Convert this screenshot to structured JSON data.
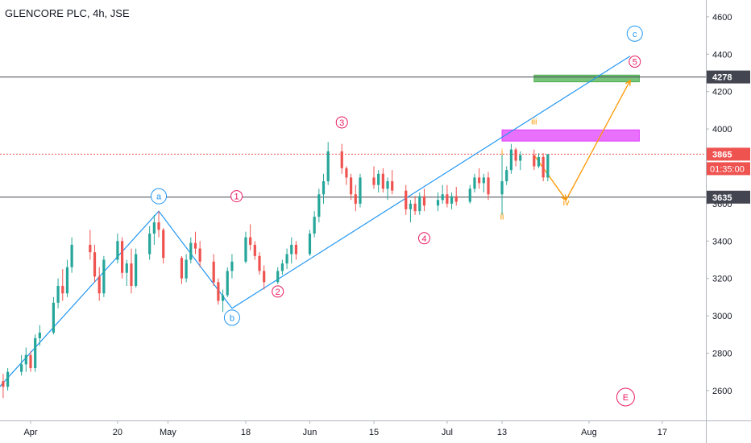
{
  "header": {
    "title": "GLENCORE PLC, 4h, JSE"
  },
  "price_badges": {
    "resistance": "4278",
    "last": "3865",
    "countdown": "01:35:00",
    "support": "3635"
  },
  "colors": {
    "up": "#26a69a",
    "down": "#ef5350",
    "trendline": "#2196f3",
    "projection": "#ff9800",
    "pink_label": "#e91e63",
    "green_zone": "#4caf50",
    "purple_zone": "#e040fb",
    "last_price_badge": "#ef5350",
    "level_badge": "#434651"
  },
  "wave_labels": {
    "primary": [
      "a",
      "b",
      "c"
    ],
    "intermediate": [
      "1",
      "2",
      "3",
      "4",
      "5",
      "E"
    ],
    "minor": [
      "i",
      "ii",
      "iii",
      "iv"
    ]
  },
  "chart_data": {
    "type": "candlestick",
    "title": "GLENCORE PLC, 4h, JSE",
    "x_tick_labels": [
      "Apr",
      "20",
      "May",
      "18",
      "Jun",
      "15",
      "Jul",
      "13",
      "Aug",
      "17"
    ],
    "y_tick_labels": [
      "2600",
      "2800",
      "3000",
      "3200",
      "3400",
      "3600",
      "3800",
      "4000",
      "4200",
      "4400",
      "4600"
    ],
    "ylim": [
      2440,
      4690
    ],
    "grid": false,
    "horizontal_levels": [
      4278,
      3865,
      3635
    ],
    "zones": [
      {
        "name": "green-zone",
        "from": 4252,
        "to": 4288,
        "x_start": "2020-07-20",
        "x_end": "2020-08-12"
      },
      {
        "name": "purple-zone",
        "from": 3935,
        "to": 3995,
        "x_start": "2020-07-13",
        "x_end": "2020-08-12"
      }
    ],
    "trendlines": [
      {
        "name": "abc-path",
        "points": [
          [
            "2020-03-23",
            2560
          ],
          [
            "2020-04-29",
            3560
          ],
          [
            "2020-05-15",
            3040
          ],
          [
            "2020-08-10",
            4390
          ]
        ]
      }
    ],
    "projection": [
      [
        "2020-07-20",
        3860
      ],
      [
        "2020-07-27",
        3620
      ],
      [
        "2020-08-10",
        4260
      ]
    ],
    "wave_label_positions": [
      {
        "text": "a",
        "x": "2020-04-29",
        "y": 3640,
        "style": "circle-blue"
      },
      {
        "text": "b",
        "x": "2020-05-15",
        "y": 2990,
        "style": "circle-blue"
      },
      {
        "text": "c",
        "x": "2020-08-11",
        "y": 4510,
        "style": "circle-blue"
      },
      {
        "text": "1",
        "x": "2020-05-16",
        "y": 3640,
        "style": "circle-pink"
      },
      {
        "text": "2",
        "x": "2020-05-25",
        "y": 3130,
        "style": "circle-pink"
      },
      {
        "text": "3",
        "x": "2020-06-08",
        "y": 4035,
        "style": "circle-pink"
      },
      {
        "text": "4",
        "x": "2020-06-26",
        "y": 3415,
        "style": "circle-pink"
      },
      {
        "text": "5",
        "x": "2020-08-11",
        "y": 4360,
        "style": "circle-pink"
      },
      {
        "text": "E",
        "x": "2020-08-09",
        "y": 2565,
        "style": "circle-pink-large"
      },
      {
        "text": "i",
        "x": "2020-07-13",
        "y": 3860,
        "style": "text-orange"
      },
      {
        "text": "ii",
        "x": "2020-07-13",
        "y": 3515,
        "style": "text-orange"
      },
      {
        "text": "iii",
        "x": "2020-07-20",
        "y": 4025,
        "style": "text-orange"
      },
      {
        "text": "iv",
        "x": "2020-07-27",
        "y": 3590,
        "style": "text-orange"
      }
    ],
    "candles": [
      [
        "2020-03-23",
        2700,
        2760,
        2620,
        2680
      ],
      [
        "2020-03-24",
        2680,
        2850,
        2660,
        2820
      ],
      [
        "2020-03-25",
        2820,
        2840,
        2620,
        2650
      ],
      [
        "2020-03-26",
        2650,
        2690,
        2560,
        2620
      ],
      [
        "2020-03-27",
        2620,
        2720,
        2600,
        2700
      ],
      [
        "2020-03-30",
        2700,
        2790,
        2680,
        2740
      ],
      [
        "2020-03-31",
        2740,
        2830,
        2700,
        2790
      ],
      [
        "2020-04-01",
        2790,
        2810,
        2700,
        2720
      ],
      [
        "2020-04-02",
        2720,
        2900,
        2700,
        2880
      ],
      [
        "2020-04-03",
        2880,
        2950,
        2840,
        2910
      ],
      [
        "2020-04-06",
        2910,
        3100,
        2900,
        3070
      ],
      [
        "2020-04-07",
        3070,
        3200,
        3040,
        3160
      ],
      [
        "2020-04-08",
        3160,
        3250,
        3080,
        3120
      ],
      [
        "2020-04-09",
        3120,
        3300,
        3100,
        3260
      ],
      [
        "2020-04-10",
        3260,
        3420,
        3230,
        3380
      ],
      [
        "2020-04-14",
        3380,
        3460,
        3300,
        3340
      ],
      [
        "2020-04-15",
        3340,
        3380,
        3180,
        3210
      ],
      [
        "2020-04-16",
        3210,
        3260,
        3080,
        3120
      ],
      [
        "2020-04-17",
        3120,
        3320,
        3100,
        3300
      ],
      [
        "2020-04-20",
        3300,
        3440,
        3280,
        3400
      ],
      [
        "2020-04-21",
        3400,
        3420,
        3200,
        3230
      ],
      [
        "2020-04-22",
        3230,
        3300,
        3160,
        3280
      ],
      [
        "2020-04-23",
        3280,
        3360,
        3120,
        3160
      ],
      [
        "2020-04-24",
        3160,
        3360,
        3150,
        3330
      ],
      [
        "2020-04-27",
        3330,
        3480,
        3300,
        3440
      ],
      [
        "2020-04-28",
        3440,
        3540,
        3380,
        3500
      ],
      [
        "2020-04-29",
        3500,
        3560,
        3420,
        3460
      ],
      [
        "2020-04-30",
        3460,
        3470,
        3280,
        3310
      ],
      [
        "2020-05-04",
        3310,
        3320,
        3170,
        3200
      ],
      [
        "2020-05-05",
        3200,
        3330,
        3180,
        3300
      ],
      [
        "2020-05-06",
        3300,
        3420,
        3280,
        3390
      ],
      [
        "2020-05-07",
        3390,
        3450,
        3330,
        3360
      ],
      [
        "2020-05-08",
        3360,
        3400,
        3260,
        3290
      ],
      [
        "2020-05-11",
        3290,
        3330,
        3160,
        3180
      ],
      [
        "2020-05-12",
        3180,
        3200,
        3060,
        3080
      ],
      [
        "2020-05-13",
        3080,
        3140,
        3020,
        3110
      ],
      [
        "2020-05-14",
        3110,
        3260,
        3100,
        3240
      ],
      [
        "2020-05-15",
        3240,
        3330,
        3200,
        3290
      ],
      [
        "2020-05-18",
        3290,
        3450,
        3280,
        3420
      ],
      [
        "2020-05-19",
        3420,
        3490,
        3350,
        3380
      ],
      [
        "2020-05-20",
        3380,
        3400,
        3300,
        3320
      ],
      [
        "2020-05-21",
        3320,
        3340,
        3220,
        3240
      ],
      [
        "2020-05-22",
        3240,
        3270,
        3140,
        3180
      ],
      [
        "2020-05-25",
        3180,
        3260,
        3170,
        3240
      ],
      [
        "2020-05-26",
        3240,
        3300,
        3220,
        3280
      ],
      [
        "2020-05-27",
        3280,
        3360,
        3250,
        3330
      ],
      [
        "2020-05-28",
        3330,
        3420,
        3280,
        3380
      ],
      [
        "2020-05-29",
        3380,
        3400,
        3300,
        3330
      ],
      [
        "2020-06-01",
        3330,
        3460,
        3320,
        3440
      ],
      [
        "2020-06-02",
        3440,
        3560,
        3420,
        3530
      ],
      [
        "2020-06-03",
        3530,
        3680,
        3500,
        3650
      ],
      [
        "2020-06-04",
        3650,
        3760,
        3600,
        3720
      ],
      [
        "2020-06-05",
        3720,
        3930,
        3700,
        3880
      ],
      [
        "2020-06-08",
        3880,
        3920,
        3760,
        3790
      ],
      [
        "2020-06-09",
        3790,
        3800,
        3700,
        3740
      ],
      [
        "2020-06-10",
        3740,
        3760,
        3620,
        3650
      ],
      [
        "2020-06-11",
        3650,
        3700,
        3560,
        3600
      ],
      [
        "2020-06-12",
        3600,
        3760,
        3580,
        3740
      ],
      [
        "2020-06-15",
        3740,
        3800,
        3680,
        3700
      ],
      [
        "2020-06-16",
        3700,
        3780,
        3660,
        3760
      ],
      [
        "2020-06-17",
        3760,
        3790,
        3660,
        3680
      ],
      [
        "2020-06-18",
        3680,
        3740,
        3620,
        3720
      ],
      [
        "2020-06-19",
        3720,
        3780,
        3650,
        3670
      ],
      [
        "2020-06-22",
        3670,
        3700,
        3540,
        3570
      ],
      [
        "2020-06-23",
        3570,
        3620,
        3500,
        3600
      ],
      [
        "2020-06-24",
        3600,
        3640,
        3540,
        3560
      ],
      [
        "2020-06-25",
        3560,
        3660,
        3540,
        3640
      ],
      [
        "2020-06-26",
        3640,
        3680,
        3560,
        3590
      ],
      [
        "2020-06-29",
        3590,
        3660,
        3560,
        3620
      ],
      [
        "2020-06-30",
        3620,
        3700,
        3600,
        3650
      ],
      [
        "2020-07-01",
        3650,
        3700,
        3580,
        3600
      ],
      [
        "2020-07-02",
        3600,
        3660,
        3570,
        3640
      ],
      [
        "2020-07-03",
        3640,
        3690,
        3590,
        3610
      ],
      [
        "2020-07-06",
        3610,
        3700,
        3600,
        3680
      ],
      [
        "2020-07-07",
        3680,
        3760,
        3660,
        3740
      ],
      [
        "2020-07-08",
        3740,
        3790,
        3680,
        3710
      ],
      [
        "2020-07-09",
        3710,
        3760,
        3660,
        3740
      ],
      [
        "2020-07-10",
        3740,
        3770,
        3620,
        3650
      ],
      [
        "2020-07-13",
        3650,
        3870,
        3540,
        3720
      ],
      [
        "2020-07-14",
        3720,
        3800,
        3700,
        3780
      ],
      [
        "2020-07-15",
        3780,
        3920,
        3760,
        3890
      ],
      [
        "2020-07-16",
        3890,
        3900,
        3800,
        3830
      ],
      [
        "2020-07-17",
        3830,
        3880,
        3780,
        3860
      ],
      [
        "2020-07-20",
        3860,
        3890,
        3780,
        3800
      ],
      [
        "2020-07-21",
        3800,
        3870,
        3790,
        3850
      ],
      [
        "2020-07-22",
        3850,
        3870,
        3720,
        3740
      ],
      [
        "2020-07-23",
        3740,
        3860,
        3720,
        3865
      ]
    ]
  }
}
